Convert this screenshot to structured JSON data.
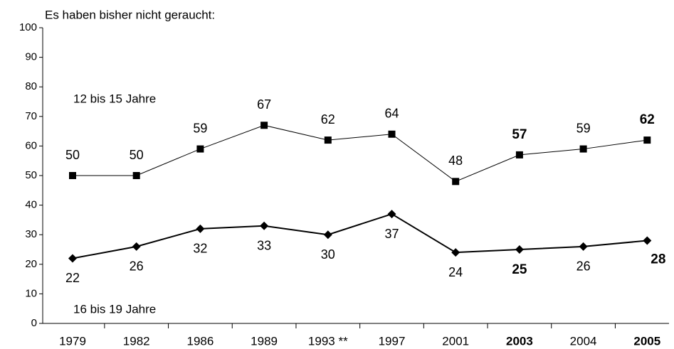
{
  "chart_data": {
    "type": "line",
    "title": "Es haben bisher nicht geraucht:",
    "categories": [
      "1979",
      "1982",
      "1986",
      "1989",
      "1993 **",
      "1997",
      "2001",
      "2003",
      "2004",
      "2005"
    ],
    "categories_bold": [
      false,
      false,
      false,
      false,
      false,
      false,
      false,
      true,
      false,
      true
    ],
    "series": [
      {
        "name": "12 bis 15 Jahre",
        "color": "#000000",
        "marker": "square",
        "line_width": 1,
        "label_position": "above",
        "values": [
          50,
          50,
          59,
          67,
          62,
          64,
          48,
          57,
          59,
          62
        ],
        "labels_bold": [
          false,
          false,
          false,
          false,
          false,
          false,
          false,
          true,
          false,
          true
        ]
      },
      {
        "name": "16 bis 19 Jahre",
        "color": "#000000",
        "marker": "diamond",
        "line_width": 2,
        "label_position": "below",
        "values": [
          22,
          26,
          32,
          33,
          30,
          37,
          24,
          25,
          26,
          28
        ],
        "labels_bold": [
          false,
          false,
          false,
          false,
          false,
          false,
          false,
          true,
          false,
          true
        ]
      }
    ],
    "ylim": [
      0,
      100
    ],
    "yticks": [
      0,
      10,
      20,
      30,
      40,
      50,
      60,
      70,
      80,
      90,
      100
    ],
    "grid": false
  }
}
